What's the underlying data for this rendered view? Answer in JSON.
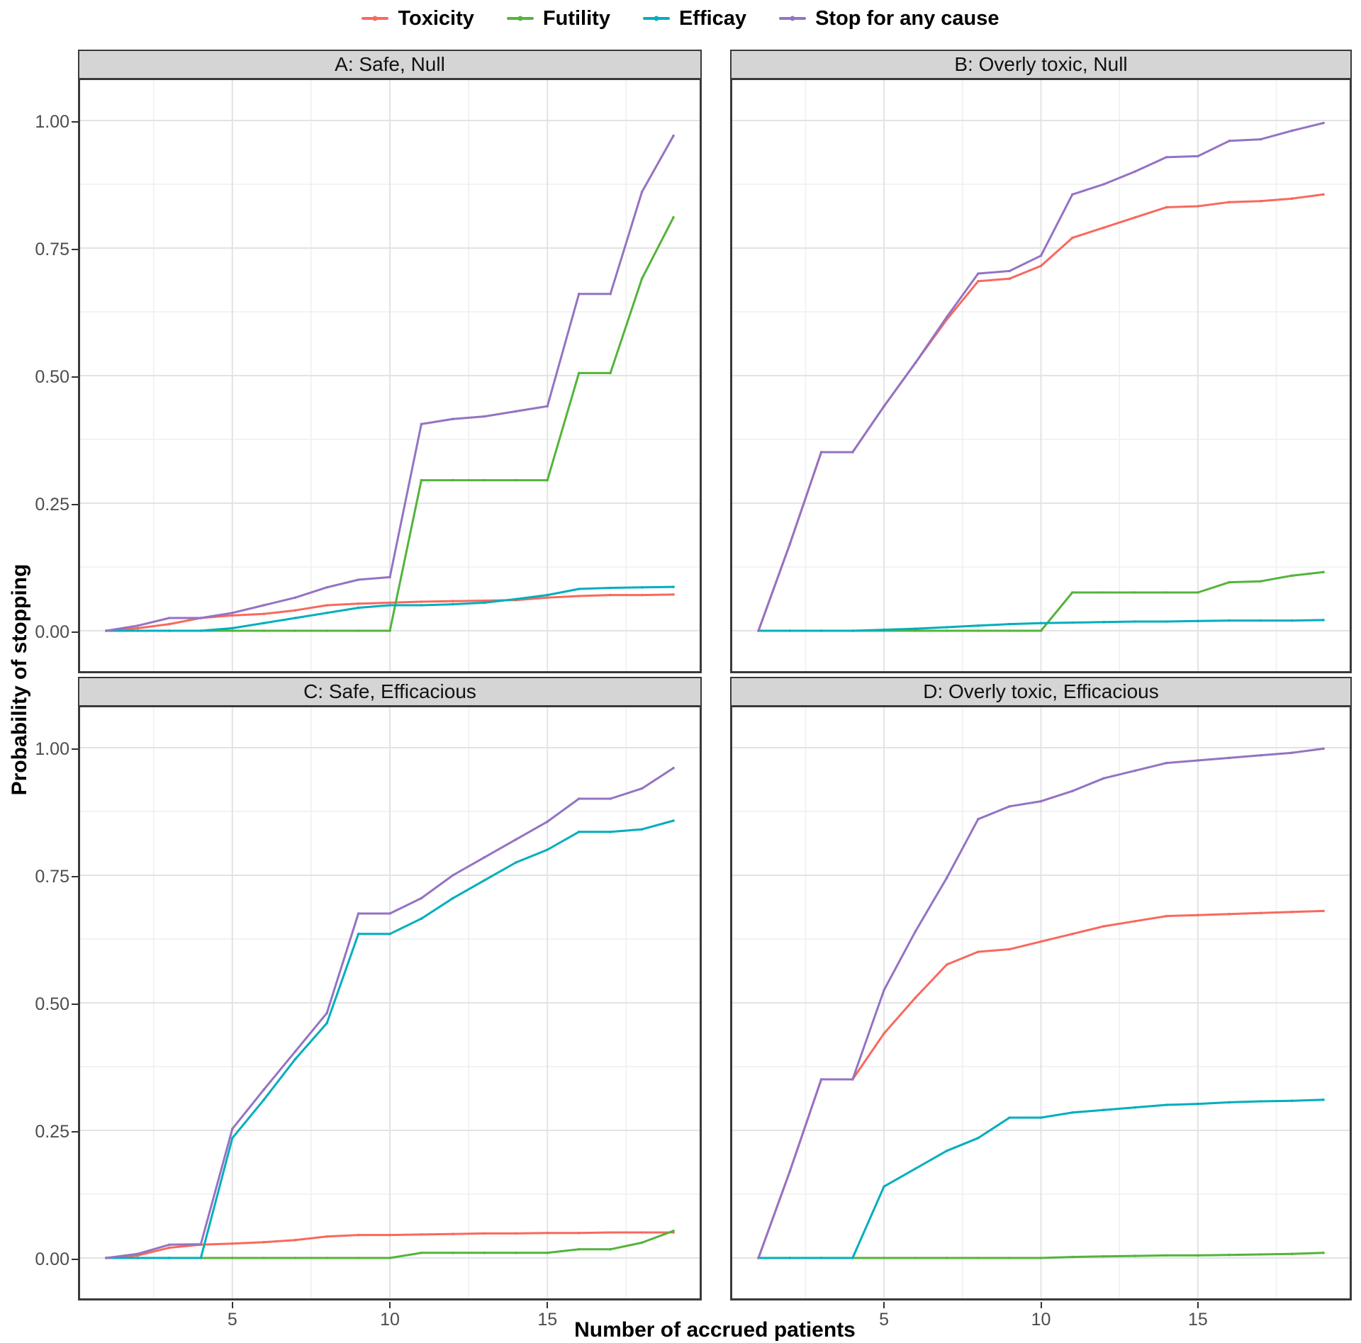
{
  "legend": {
    "items": [
      {
        "label": "Toxicity",
        "color": "#f8695e"
      },
      {
        "label": "Futility",
        "color": "#53b43a"
      },
      {
        "label": "Efficay",
        "color": "#00aebe"
      },
      {
        "label": "Stop for any cause",
        "color": "#9473c3"
      }
    ]
  },
  "axes": {
    "x_title": "Number of accrued patients",
    "y_title": "Probability of stopping",
    "x_range": [
      1,
      19
    ],
    "y_range": [
      0,
      1
    ],
    "x_major": [
      5,
      10,
      15
    ],
    "x_minor": [
      2.5,
      7.5,
      12.5,
      17.5
    ],
    "y_major": [
      0,
      0.25,
      0.5,
      0.75,
      1
    ],
    "y_minor": [
      0.125,
      0.375,
      0.625,
      0.875
    ],
    "y_tick_labels": [
      "1.00",
      "0.75",
      "0.50",
      "0.25",
      "0.00"
    ],
    "y_tick_values": [
      1,
      0.75,
      0.5,
      0.25,
      0
    ],
    "x_tick_labels": [
      "5",
      "10",
      "15"
    ]
  },
  "chart_data": [
    {
      "type": "line",
      "title": "A: Safe, Null",
      "x": [
        1,
        2,
        3,
        4,
        5,
        6,
        7,
        8,
        9,
        10,
        11,
        12,
        13,
        14,
        15,
        16,
        17,
        18,
        19
      ],
      "series": [
        {
          "name": "Toxicity",
          "values": [
            0,
            0.005,
            0.013,
            0.025,
            0.03,
            0.033,
            0.04,
            0.05,
            0.053,
            0.055,
            0.057,
            0.058,
            0.059,
            0.06,
            0.065,
            0.068,
            0.07,
            0.07,
            0.071
          ]
        },
        {
          "name": "Futility",
          "values": [
            0,
            0,
            0,
            0,
            0,
            0,
            0,
            0,
            0,
            0,
            0.295,
            0.295,
            0.295,
            0.295,
            0.295,
            0.505,
            0.505,
            0.69,
            0.81
          ]
        },
        {
          "name": "Efficay",
          "values": [
            0,
            0,
            0,
            0,
            0.005,
            0.015,
            0.025,
            0.035,
            0.045,
            0.05,
            0.05,
            0.052,
            0.055,
            0.062,
            0.07,
            0.082,
            0.084,
            0.085,
            0.086
          ]
        },
        {
          "name": "Stop for any cause",
          "values": [
            0,
            0.01,
            0.025,
            0.025,
            0.035,
            0.05,
            0.065,
            0.085,
            0.1,
            0.105,
            0.405,
            0.415,
            0.42,
            0.43,
            0.44,
            0.66,
            0.66,
            0.86,
            0.97
          ]
        }
      ]
    },
    {
      "type": "line",
      "title": "B: Overly toxic, Null",
      "x": [
        1,
        2,
        3,
        4,
        5,
        6,
        7,
        8,
        9,
        10,
        11,
        12,
        13,
        14,
        15,
        16,
        17,
        18,
        19
      ],
      "series": [
        {
          "name": "Toxicity",
          "values": [
            0,
            0.17,
            0.35,
            0.35,
            0.44,
            0.525,
            0.61,
            0.685,
            0.69,
            0.715,
            0.77,
            0.79,
            0.81,
            0.83,
            0.832,
            0.84,
            0.842,
            0.847,
            0.855
          ]
        },
        {
          "name": "Futility",
          "values": [
            0,
            0,
            0,
            0,
            0,
            0,
            0,
            0,
            0,
            0,
            0.075,
            0.075,
            0.075,
            0.075,
            0.075,
            0.095,
            0.097,
            0.108,
            0.115
          ]
        },
        {
          "name": "Efficay",
          "values": [
            0,
            0,
            0,
            0,
            0.002,
            0.004,
            0.007,
            0.01,
            0.013,
            0.015,
            0.016,
            0.017,
            0.018,
            0.018,
            0.019,
            0.02,
            0.02,
            0.02,
            0.021
          ]
        },
        {
          "name": "Stop for any cause",
          "values": [
            0,
            0.17,
            0.35,
            0.35,
            0.44,
            0.525,
            0.615,
            0.7,
            0.705,
            0.735,
            0.855,
            0.875,
            0.9,
            0.928,
            0.93,
            0.96,
            0.963,
            0.98,
            0.995
          ]
        }
      ]
    },
    {
      "type": "line",
      "title": "C: Safe, Efficacious",
      "x": [
        1,
        2,
        3,
        4,
        5,
        6,
        7,
        8,
        9,
        10,
        11,
        12,
        13,
        14,
        15,
        16,
        17,
        18,
        19
      ],
      "series": [
        {
          "name": "Toxicity",
          "values": [
            0,
            0.005,
            0.02,
            0.026,
            0.028,
            0.031,
            0.035,
            0.042,
            0.045,
            0.045,
            0.046,
            0.047,
            0.048,
            0.048,
            0.049,
            0.049,
            0.05,
            0.05,
            0.05
          ]
        },
        {
          "name": "Futility",
          "values": [
            0,
            0,
            0,
            0,
            0,
            0,
            0,
            0,
            0,
            0,
            0.01,
            0.01,
            0.01,
            0.01,
            0.01,
            0.017,
            0.017,
            0.03,
            0.053
          ]
        },
        {
          "name": "Efficay",
          "values": [
            0,
            0,
            0,
            0,
            0.235,
            0.31,
            0.39,
            0.46,
            0.635,
            0.635,
            0.665,
            0.705,
            0.74,
            0.775,
            0.8,
            0.835,
            0.835,
            0.84,
            0.857
          ]
        },
        {
          "name": "Stop for any cause",
          "values": [
            0,
            0.008,
            0.026,
            0.027,
            0.253,
            0.33,
            0.405,
            0.48,
            0.675,
            0.675,
            0.705,
            0.75,
            0.785,
            0.82,
            0.855,
            0.9,
            0.9,
            0.92,
            0.96
          ]
        }
      ]
    },
    {
      "type": "line",
      "title": "D: Overly toxic, Efficacious",
      "x": [
        1,
        2,
        3,
        4,
        5,
        6,
        7,
        8,
        9,
        10,
        11,
        12,
        13,
        14,
        15,
        16,
        17,
        18,
        19
      ],
      "series": [
        {
          "name": "Toxicity",
          "values": [
            0,
            0.17,
            0.35,
            0.35,
            0.44,
            0.51,
            0.575,
            0.6,
            0.605,
            0.62,
            0.635,
            0.65,
            0.66,
            0.67,
            0.672,
            0.674,
            0.676,
            0.678,
            0.68
          ]
        },
        {
          "name": "Futility",
          "values": [
            0,
            0,
            0,
            0,
            0,
            0,
            0,
            0,
            0,
            0,
            0.002,
            0.003,
            0.004,
            0.005,
            0.005,
            0.006,
            0.007,
            0.008,
            0.01
          ]
        },
        {
          "name": "Efficay",
          "values": [
            0,
            0,
            0,
            0,
            0.14,
            0.175,
            0.21,
            0.235,
            0.275,
            0.275,
            0.285,
            0.29,
            0.295,
            0.3,
            0.302,
            0.305,
            0.307,
            0.308,
            0.31
          ]
        },
        {
          "name": "Stop for any cause",
          "values": [
            0,
            0.17,
            0.35,
            0.35,
            0.525,
            0.64,
            0.745,
            0.86,
            0.885,
            0.895,
            0.915,
            0.94,
            0.955,
            0.97,
            0.975,
            0.98,
            0.985,
            0.99,
            0.998
          ]
        }
      ]
    }
  ],
  "style": {
    "grid_major_color": "#e3e3e3",
    "grid_minor_color": "#efefef",
    "panel_border_color": "#3a3a3a",
    "strip_bg_color": "#d5d5d5",
    "tick_color": "#333333",
    "tick_label_color": "#4d4d4d"
  }
}
